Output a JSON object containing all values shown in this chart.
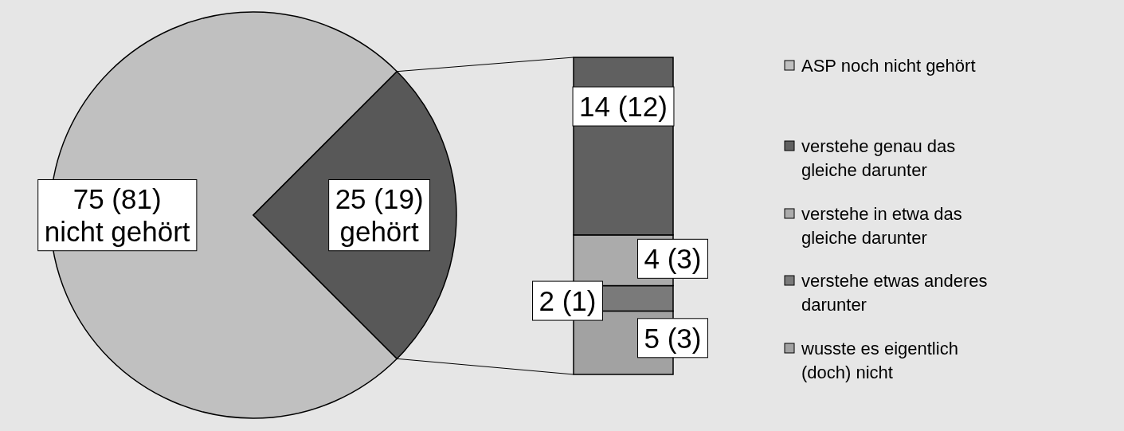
{
  "chart_data": [
    {
      "type": "pie",
      "categories": [
        "ASP noch nicht gehört",
        null
      ],
      "values": [
        75,
        25
      ],
      "colors": [
        "#c0c0c0",
        "#585858"
      ],
      "value_labels": [
        "75 (81)\nnicht gehört",
        "25 (19)\ngehört"
      ],
      "legend": "right"
    },
    {
      "type": "bar",
      "stacked": true,
      "categories": [
        null
      ],
      "legend": "right",
      "series": [
        {
          "name": "wusste es eigentlich (doch) nicht",
          "color": "#a2a2a2",
          "values": [
            5
          ],
          "value_labels": [
            "5 (3)"
          ]
        },
        {
          "name": "verstehe etwas anderes darunter",
          "color": "#7a7a7a",
          "values": [
            2
          ],
          "value_labels": [
            "2 (1)"
          ]
        },
        {
          "name": "verstehe in etwa  das gleiche darunter",
          "color": "#ababab",
          "values": [
            4
          ],
          "value_labels": [
            "4 (3)"
          ]
        },
        {
          "name": "verstehe genau das gleiche darunter",
          "color": "#606060",
          "values": [
            14
          ],
          "value_labels": [
            "14 (12)"
          ]
        }
      ]
    }
  ]
}
